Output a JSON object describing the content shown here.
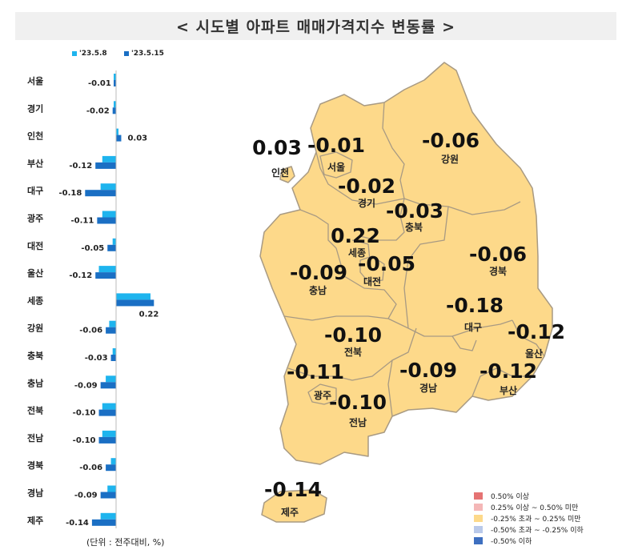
{
  "title": "< 시도별 아파트 매매가격지수 변동률 >",
  "unit_note": "(단위 : 전주대비, %)",
  "chart_data": {
    "type": "bar",
    "orientation": "horizontal",
    "categories": [
      "서울",
      "경기",
      "인천",
      "부산",
      "대구",
      "광주",
      "대전",
      "울산",
      "세종",
      "강원",
      "충북",
      "충남",
      "전북",
      "전남",
      "경북",
      "경남",
      "제주"
    ],
    "series": [
      {
        "name": "'23.5.8",
        "color": "#1eb4ee"
      },
      {
        "name": "'23.5.15",
        "color": "#1a6fc4",
        "values": [
          -0.01,
          -0.02,
          0.03,
          -0.12,
          -0.18,
          -0.11,
          -0.05,
          -0.12,
          0.22,
          -0.06,
          -0.03,
          -0.09,
          -0.1,
          -0.1,
          -0.06,
          -0.09,
          -0.14
        ]
      }
    ],
    "value_labels": [
      "-0.01",
      "-0.02",
      "0.03",
      "-0.12",
      "-0.18",
      "-0.11",
      "-0.05",
      "-0.12",
      "0.22",
      "-0.06",
      "-0.03",
      "-0.09",
      "-0.10",
      "-0.10",
      "-0.06",
      "-0.09",
      "-0.14"
    ],
    "prev_week_estimates": [
      -0.01,
      -0.01,
      0.0,
      -0.08,
      -0.09,
      -0.08,
      -0.02,
      -0.1,
      0.2,
      -0.04,
      -0.02,
      -0.06,
      -0.08,
      -0.08,
      -0.03,
      -0.05,
      -0.09
    ]
  },
  "map": {
    "regions": [
      {
        "name": "인천",
        "value": "0.03"
      },
      {
        "name": "서울",
        "value": "-0.01"
      },
      {
        "name": "강원",
        "value": "-0.06"
      },
      {
        "name": "경기",
        "value": "-0.02"
      },
      {
        "name": "충북",
        "value": "-0.03"
      },
      {
        "name": "세종",
        "value": "0.22"
      },
      {
        "name": "충남",
        "value": "-0.09"
      },
      {
        "name": "대전",
        "value": "-0.05"
      },
      {
        "name": "경북",
        "value": "-0.06"
      },
      {
        "name": "대구",
        "value": "-0.18"
      },
      {
        "name": "울산",
        "value": "-0.12"
      },
      {
        "name": "전북",
        "value": "-0.10"
      },
      {
        "name": "광주",
        "value": "-0.11"
      },
      {
        "name": "경남",
        "value": "-0.09"
      },
      {
        "name": "부산",
        "value": "-0.12"
      },
      {
        "name": "전남",
        "value": "-0.10"
      },
      {
        "name": "제주",
        "value": "-0.14"
      }
    ],
    "fill_color": "#fdd98a",
    "legend": [
      {
        "label": "0.50% 이상",
        "color": "#e57373"
      },
      {
        "label": "0.25% 이상 ~ 0.50% 미만",
        "color": "#f4b7b7"
      },
      {
        "label": "-0.25% 초과 ~ 0.25% 미만",
        "color": "#fdd98a"
      },
      {
        "label": "-0.50% 초과 ~ -0.25% 이하",
        "color": "#b9c9ea"
      },
      {
        "label": "-0.50% 이하",
        "color": "#3e6fc0"
      }
    ]
  }
}
